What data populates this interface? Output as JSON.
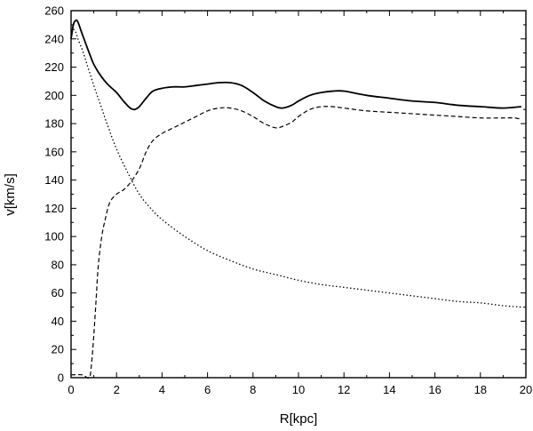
{
  "chart_data": {
    "type": "line",
    "xlabel": "R[kpc]",
    "ylabel": "v[km/s]",
    "xlim": [
      0,
      20
    ],
    "ylim": [
      0,
      260
    ],
    "xticks": [
      0,
      2,
      4,
      6,
      8,
      10,
      12,
      14,
      16,
      18,
      20
    ],
    "yticks": [
      0,
      20,
      40,
      60,
      80,
      100,
      120,
      140,
      160,
      180,
      200,
      220,
      240,
      260
    ],
    "grid": false,
    "legend": "none",
    "series": [
      {
        "style": "solid",
        "color": "#000000",
        "x": [
          0.0,
          0.1,
          0.2,
          0.3,
          0.5,
          0.8,
          1.0,
          1.3,
          1.6,
          2.0,
          2.3,
          2.6,
          2.8,
          3.0,
          3.3,
          3.6,
          4.0,
          4.5,
          5.0,
          5.5,
          6.0,
          6.5,
          7.0,
          7.5,
          8.0,
          8.5,
          9.0,
          9.3,
          9.7,
          10.0,
          10.5,
          11.0,
          11.5,
          12.0,
          13.0,
          14.0,
          15.0,
          16.0,
          17.0,
          18.0,
          19.0,
          19.8
        ],
        "y": [
          240,
          250,
          253,
          252,
          243,
          230,
          222,
          214,
          208,
          202,
          196,
          191,
          190,
          192,
          198,
          203,
          205,
          206,
          206,
          207,
          208,
          209,
          209,
          207,
          202,
          196,
          192,
          191,
          193,
          196,
          200,
          202,
          203,
          203,
          200,
          198,
          196,
          195,
          193,
          192,
          191,
          192
        ]
      },
      {
        "style": "dashed",
        "color": "#000000",
        "x": [
          0.0,
          0.5,
          0.8,
          0.9,
          1.0,
          1.1,
          1.2,
          1.35,
          1.5,
          1.7,
          2.0,
          2.3,
          2.6,
          3.0,
          3.3,
          3.6,
          4.0,
          4.5,
          5.0,
          5.5,
          6.0,
          6.5,
          7.0,
          7.5,
          8.0,
          8.5,
          9.0,
          9.3,
          9.7,
          10.0,
          10.5,
          11.0,
          11.5,
          12.0,
          13.0,
          14.0,
          15.0,
          16.0,
          17.0,
          18.0,
          19.0,
          19.5,
          19.8
        ],
        "y": [
          2,
          2,
          0,
          10,
          30,
          55,
          80,
          100,
          112,
          124,
          130,
          133,
          138,
          148,
          160,
          168,
          173,
          177,
          181,
          185,
          189,
          191,
          191,
          189,
          185,
          180,
          177,
          178,
          181,
          185,
          190,
          192,
          192,
          191,
          189,
          188,
          187,
          186,
          185,
          184,
          184,
          184,
          183
        ]
      },
      {
        "style": "dotted",
        "color": "#000000",
        "x": [
          0.1,
          0.2,
          0.3,
          0.5,
          0.7,
          1.0,
          1.3,
          1.6,
          2.0,
          2.5,
          3.0,
          3.5,
          4.0,
          5.0,
          6.0,
          7.0,
          8.0,
          9.0,
          10.0,
          11.0,
          12.0,
          13.0,
          14.0,
          15.0,
          16.0,
          17.0,
          18.0,
          19.0,
          19.8
        ],
        "y": [
          247,
          245,
          240,
          232,
          222,
          207,
          193,
          179,
          162,
          145,
          130,
          120,
          112,
          100,
          90,
          83,
          77,
          73,
          69,
          66,
          64,
          62,
          60,
          58,
          56,
          54,
          53,
          51,
          50
        ]
      }
    ]
  }
}
